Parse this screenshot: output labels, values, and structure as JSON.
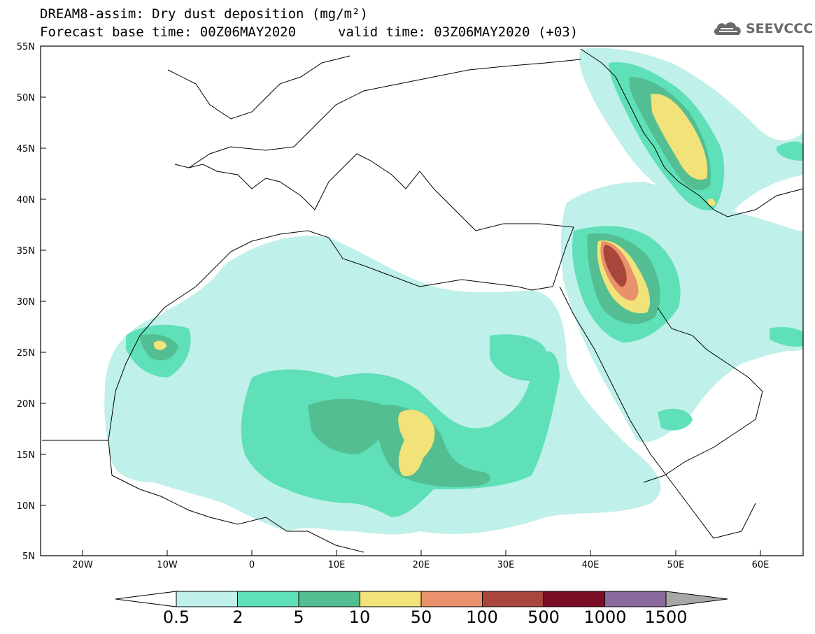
{
  "header": {
    "title": "DREAM8-assim: Dry dust deposition (mg/m²)",
    "base_time": "Forecast base time: 00Z06MAY2020",
    "valid_time": "valid time: 03Z06MAY2020 (+03)",
    "logo_text": "SEEVCCC"
  },
  "axes": {
    "lat_labels": [
      "55N",
      "50N",
      "45N",
      "40N",
      "35N",
      "30N",
      "25N",
      "20N",
      "15N",
      "10N",
      "5N"
    ],
    "lon_labels": [
      "20W",
      "10W",
      "0",
      "10E",
      "20E",
      "30E",
      "40E",
      "50E",
      "60E"
    ]
  },
  "legend": {
    "labels": [
      "0.5",
      "2",
      "5",
      "10",
      "50",
      "100",
      "500",
      "1000",
      "1500"
    ],
    "colors": [
      "#bff0ea",
      "#5fe0b8",
      "#54be93",
      "#f1e27a",
      "#e8916a",
      "#a8463b",
      "#7a0e26",
      "#8a6a9e",
      "#a8a8a8"
    ]
  },
  "chart_data": {
    "type": "heatmap",
    "title": "DREAM8-assim: Dry dust deposition (mg/m²)",
    "lat_range": [
      5,
      55
    ],
    "lon_range": [
      -25,
      65
    ],
    "levels": [
      0.5,
      2,
      5,
      10,
      50,
      100,
      500,
      1000,
      1500
    ],
    "units": "mg/m²"
  }
}
